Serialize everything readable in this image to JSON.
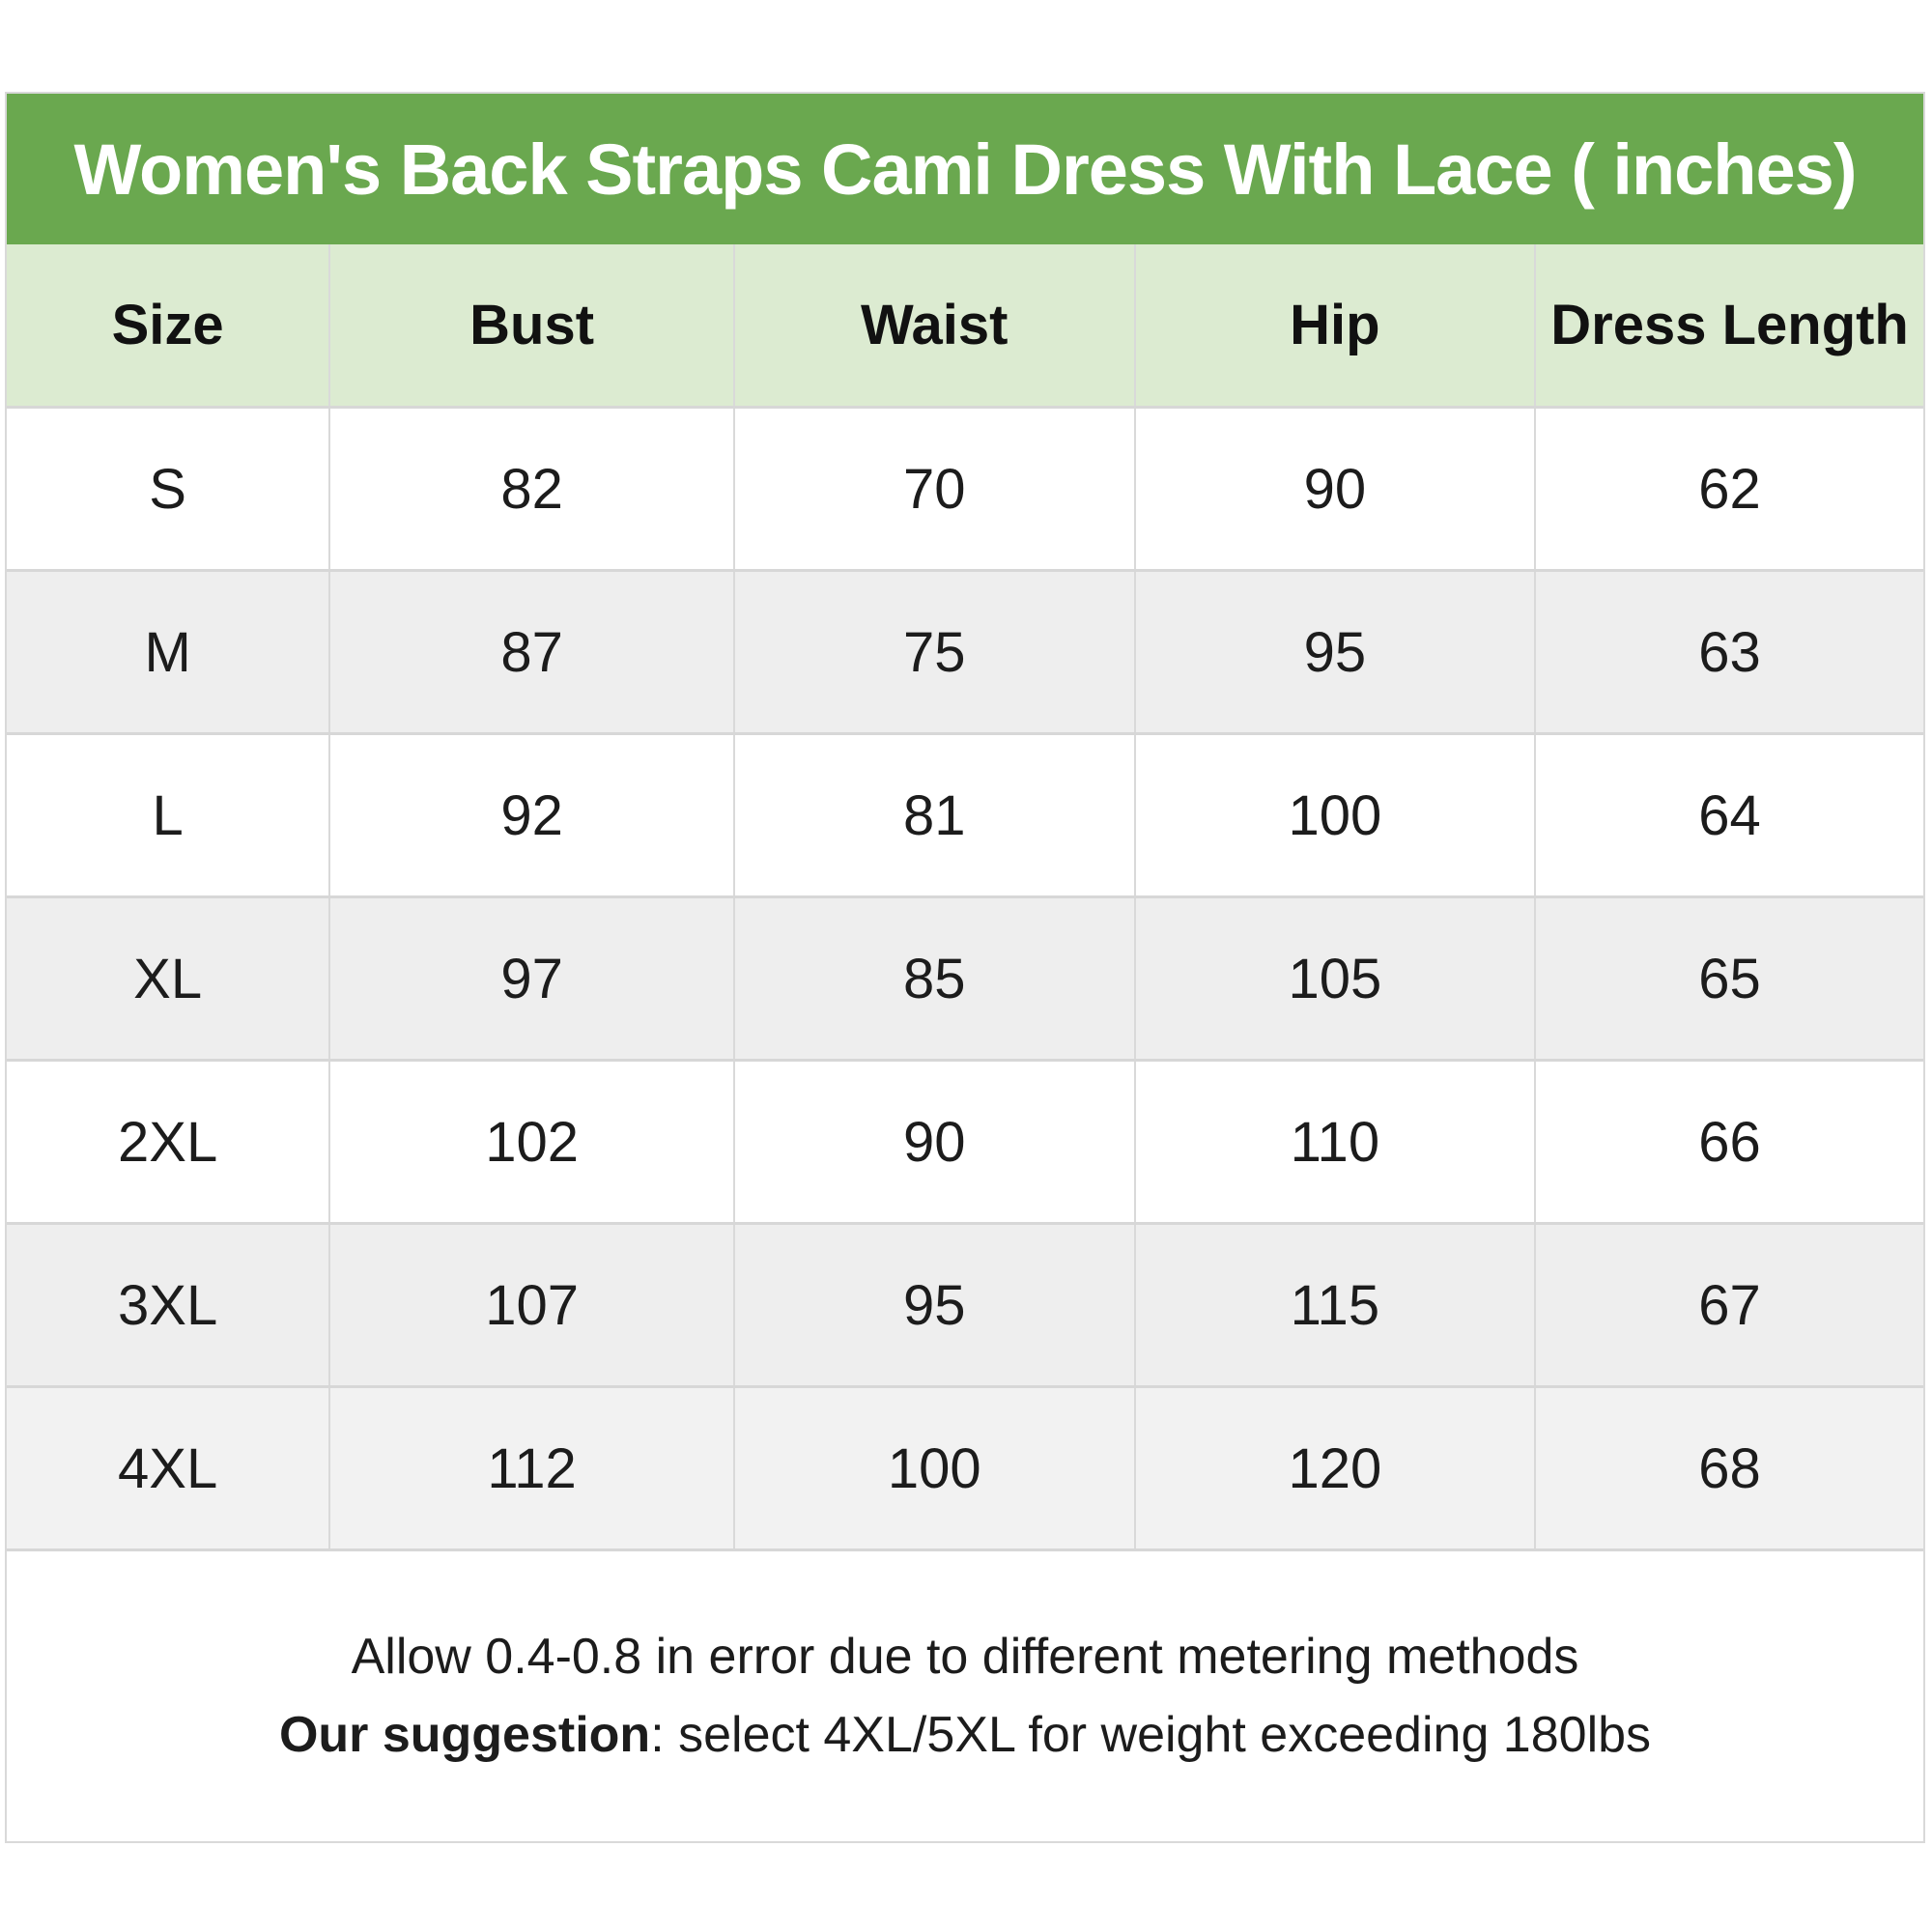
{
  "title": "Women's Back Straps Cami Dress With Lace ( inches)",
  "colors": {
    "title_bg": "#6aa84f",
    "title_text": "#ffffff",
    "header_bg": "#dcebd1",
    "row_bg": "#ffffff",
    "row_alt_bg": "#eeeeee",
    "row_last_bg": "#f2f2f2",
    "border": "#d9d9d9",
    "text": "#1c1c1c"
  },
  "table": {
    "headers": [
      "Size",
      "Bust",
      "Waist",
      "Hip",
      "Dress Length"
    ],
    "rows": [
      [
        "S",
        "82",
        "70",
        "90",
        "62"
      ],
      [
        "M",
        "87",
        "75",
        "95",
        "63"
      ],
      [
        "L",
        "92",
        "81",
        "100",
        "64"
      ],
      [
        "XL",
        "97",
        "85",
        "105",
        "65"
      ],
      [
        "2XL",
        "102",
        "90",
        "110",
        "66"
      ],
      [
        "3XL",
        "107",
        "95",
        "115",
        "67"
      ],
      [
        "4XL",
        "112",
        "100",
        "120",
        "68"
      ]
    ]
  },
  "footer": {
    "line1": "Allow 0.4-0.8 in error due to different metering methods",
    "line2_bold": "Our suggestion",
    "line2_rest": ": select 4XL/5XL for weight exceeding 180lbs"
  },
  "chart_data": {
    "type": "table",
    "title": "Women's Back Straps Cami Dress With Lace ( inches)",
    "unit": "inches",
    "columns": [
      "Size",
      "Bust",
      "Waist",
      "Hip",
      "Dress Length"
    ],
    "rows": [
      {
        "Size": "S",
        "Bust": 82,
        "Waist": 70,
        "Hip": 90,
        "Dress Length": 62
      },
      {
        "Size": "M",
        "Bust": 87,
        "Waist": 75,
        "Hip": 95,
        "Dress Length": 63
      },
      {
        "Size": "L",
        "Bust": 92,
        "Waist": 81,
        "Hip": 100,
        "Dress Length": 64
      },
      {
        "Size": "XL",
        "Bust": 97,
        "Waist": 85,
        "Hip": 105,
        "Dress Length": 65
      },
      {
        "Size": "2XL",
        "Bust": 102,
        "Waist": 90,
        "Hip": 110,
        "Dress Length": 66
      },
      {
        "Size": "3XL",
        "Bust": 107,
        "Waist": 95,
        "Hip": 115,
        "Dress Length": 67
      },
      {
        "Size": "4XL",
        "Bust": 112,
        "Waist": 100,
        "Hip": 120,
        "Dress Length": 68
      }
    ],
    "notes": [
      "Allow 0.4-0.8 in error due to different metering methods",
      "Our suggestion: select 4XL/5XL for weight exceeding 180lbs"
    ]
  }
}
